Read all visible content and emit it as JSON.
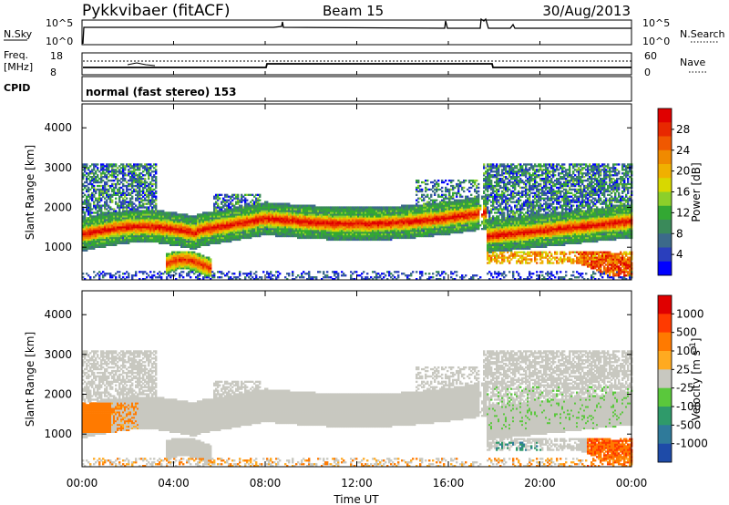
{
  "header": {
    "station": "Pykkvibaer (fitACF)",
    "beam": "Beam 15",
    "date": "30/Aug/2013"
  },
  "noise_panel": {
    "left_label": "N.Sky",
    "right_label": "N.Search",
    "left_ticks": [
      "10^5",
      "10^0"
    ],
    "right_ticks": [
      "10^5",
      "10^0"
    ]
  },
  "freq_panel": {
    "left_label_1": "Freq.",
    "left_label_2": "[MHz]",
    "right_label": "Nave",
    "left_ticks": [
      "18",
      "8"
    ],
    "right_ticks": [
      "60",
      "0"
    ],
    "cpid_label": "CPID",
    "cpid_text": "normal (fast stereo) 153"
  },
  "chart_data": [
    {
      "type": "heatmap",
      "ylabel": "Slant Range [km]",
      "ylim": [
        180,
        4600
      ],
      "yticks": [
        "1000",
        "2000",
        "3000",
        "4000"
      ],
      "xlim": [
        0,
        24
      ],
      "colorbar": {
        "label": "Power [dB]",
        "ticks": [
          "4",
          "8",
          "12",
          "16",
          "20",
          "24",
          "28"
        ],
        "colors": [
          "#0000ff",
          "#2a3fbd",
          "#3c6a8a",
          "#3a8a5a",
          "#33a833",
          "#8ccf2a",
          "#d8d800",
          "#f0b000",
          "#f08a00",
          "#f05800",
          "#e82800",
          "#e00000"
        ]
      }
    },
    {
      "type": "heatmap",
      "ylabel": "Slant Range [km]",
      "ylim": [
        180,
        4600
      ],
      "yticks": [
        "1000",
        "2000",
        "3000",
        "4000"
      ],
      "xlim": [
        0,
        24
      ],
      "colorbar": {
        "label": "Velocity [m s",
        "label_exp": "-1",
        "label_end": "]",
        "ticks": [
          "1000",
          "500",
          "100",
          "25",
          "-25",
          "-100",
          "-500",
          "-1000"
        ],
        "colors": [
          "#1e4ba8",
          "#2f7a9a",
          "#2f9a6a",
          "#5ac83c",
          "#c8c8c0",
          "#ffaa20",
          "#ff7a00",
          "#ff3a00",
          "#e00000"
        ]
      }
    }
  ],
  "xaxis": {
    "ticks": [
      "00:00",
      "04:00",
      "08:00",
      "12:00",
      "16:00",
      "20:00",
      "00:00"
    ],
    "label": "Time UT"
  }
}
